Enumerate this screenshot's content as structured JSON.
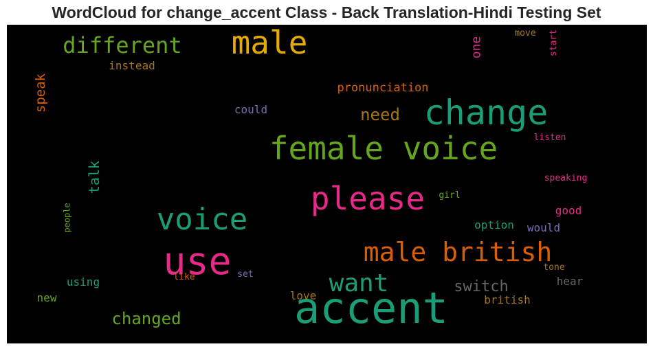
{
  "chart_data": {
    "type": "wordcloud",
    "title": "WordCloud for change_accent Class - Back Translation-Hindi Testing Set",
    "background": "#000000",
    "words": [
      {
        "text": "accent",
        "color": "#1b9e77",
        "orientation": "horizontal"
      },
      {
        "text": "female voice",
        "color": "#66a61e",
        "orientation": "horizontal"
      },
      {
        "text": "change",
        "color": "#1b9e77",
        "orientation": "horizontal"
      },
      {
        "text": "please",
        "color": "#e7298a",
        "orientation": "horizontal"
      },
      {
        "text": "use",
        "color": "#e7298a",
        "orientation": "horizontal"
      },
      {
        "text": "voice",
        "color": "#1b9e77",
        "orientation": "horizontal"
      },
      {
        "text": "male",
        "color": "#e6ab02",
        "orientation": "horizontal"
      },
      {
        "text": "male british",
        "color": "#d95f02",
        "orientation": "horizontal"
      },
      {
        "text": "want",
        "color": "#1b9e77",
        "orientation": "horizontal"
      },
      {
        "text": "different",
        "color": "#66a61e",
        "orientation": "horizontal"
      },
      {
        "text": "changed",
        "color": "#66a61e",
        "orientation": "horizontal"
      },
      {
        "text": "switch",
        "color": "#666666",
        "orientation": "horizontal"
      },
      {
        "text": "need",
        "color": "#a6761d",
        "orientation": "horizontal"
      },
      {
        "text": "talk",
        "color": "#1b9e77",
        "orientation": "vertical"
      },
      {
        "text": "speak",
        "color": "#d95f02",
        "orientation": "vertical"
      },
      {
        "text": "pronunciation",
        "color": "#d95f02",
        "orientation": "horizontal"
      },
      {
        "text": "one",
        "color": "#e7298a",
        "orientation": "vertical"
      },
      {
        "text": "could",
        "color": "#7570b3",
        "orientation": "horizontal"
      },
      {
        "text": "instead",
        "color": "#a6761d",
        "orientation": "horizontal"
      },
      {
        "text": "option",
        "color": "#1b9e77",
        "orientation": "horizontal"
      },
      {
        "text": "would",
        "color": "#7570b3",
        "orientation": "horizontal"
      },
      {
        "text": "good",
        "color": "#e7298a",
        "orientation": "horizontal"
      },
      {
        "text": "hear",
        "color": "#666666",
        "orientation": "horizontal"
      },
      {
        "text": "british",
        "color": "#a6761d",
        "orientation": "horizontal"
      },
      {
        "text": "using",
        "color": "#1b9e77",
        "orientation": "horizontal"
      },
      {
        "text": "love",
        "color": "#a6761d",
        "orientation": "horizontal"
      },
      {
        "text": "new",
        "color": "#66a61e",
        "orientation": "horizontal"
      },
      {
        "text": "speaking",
        "color": "#e7298a",
        "orientation": "horizontal"
      },
      {
        "text": "listen",
        "color": "#e7298a",
        "orientation": "horizontal"
      },
      {
        "text": "people",
        "color": "#66a61e",
        "orientation": "vertical"
      },
      {
        "text": "girl",
        "color": "#66a61e",
        "orientation": "horizontal"
      },
      {
        "text": "tone",
        "color": "#a6761d",
        "orientation": "horizontal"
      },
      {
        "text": "like",
        "color": "#d95f02",
        "orientation": "horizontal"
      },
      {
        "text": "set",
        "color": "#7570b3",
        "orientation": "horizontal"
      },
      {
        "text": "move",
        "color": "#a6761d",
        "orientation": "horizontal"
      },
      {
        "text": "start",
        "color": "#e7298a",
        "orientation": "vertical"
      }
    ]
  }
}
